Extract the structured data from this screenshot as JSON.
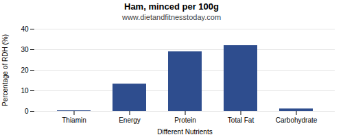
{
  "chart_data": {
    "type": "bar",
    "title": "Ham, minced per 100g",
    "subtitle": "www.dietandfitnesstoday.com",
    "xlabel": "Different Nutrients",
    "ylabel": "Percentage of RDH (%)",
    "categories": [
      "Thiamin",
      "Energy",
      "Protein",
      "Total Fat",
      "Carbohydrate"
    ],
    "values": [
      0.3,
      13.3,
      29.0,
      32.0,
      1.2
    ],
    "color": "#2e4d8e",
    "ylim": [
      0,
      40
    ],
    "yticks": [
      0,
      10,
      20,
      30,
      40
    ],
    "grid": true
  }
}
